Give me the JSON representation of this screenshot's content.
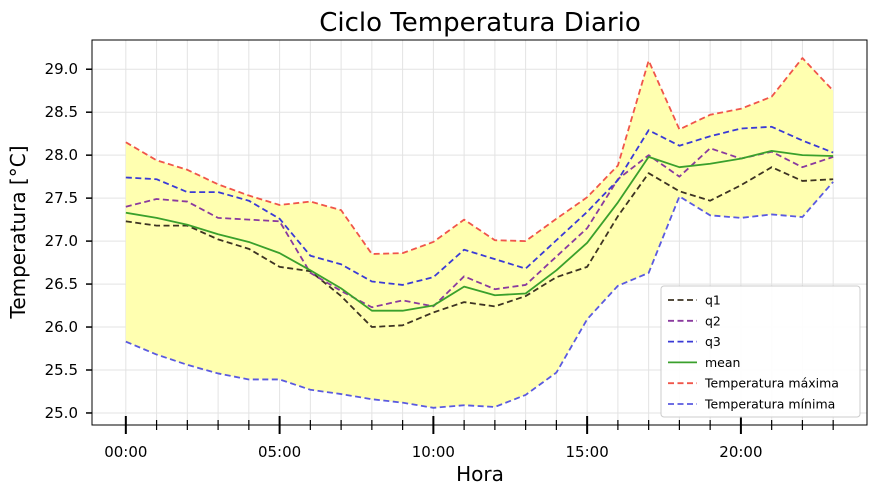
{
  "chart_data": {
    "type": "line",
    "title": "Ciclo Temperatura Diario",
    "xlabel": "Hora",
    "ylabel": "Temperatura [°C]",
    "x": [
      0,
      1,
      2,
      3,
      4,
      5,
      6,
      7,
      8,
      9,
      10,
      11,
      12,
      13,
      14,
      15,
      16,
      17,
      18,
      19,
      20,
      21,
      22,
      23
    ],
    "xlim": [
      -1.1,
      24.1
    ],
    "ylim": [
      24.86,
      29.34
    ],
    "x_ticks": [
      0,
      5,
      10,
      15,
      20
    ],
    "x_tick_labels": [
      "00:00",
      "05:00",
      "10:00",
      "15:00",
      "20:00"
    ],
    "y_ticks": [
      25.0,
      25.5,
      26.0,
      26.5,
      27.0,
      27.5,
      28.0,
      28.5,
      29.0
    ],
    "y_tick_labels": [
      "25.0",
      "25.5",
      "26.0",
      "26.5",
      "27.0",
      "27.5",
      "28.0",
      "28.5",
      "29.0"
    ],
    "grid": true,
    "legend_position": "lower-right",
    "fill_between": {
      "lower": "Temperatura mínima",
      "upper": "Temperatura máxima",
      "color": "#ffffb0"
    },
    "series": [
      {
        "name": "q1",
        "color": "#3d3322",
        "dash": true,
        "values": [
          27.23,
          27.18,
          27.18,
          27.02,
          26.91,
          26.7,
          26.65,
          26.36,
          26.0,
          26.02,
          26.17,
          26.29,
          26.24,
          26.36,
          26.58,
          26.7,
          27.29,
          27.79,
          27.58,
          27.47,
          27.65,
          27.86,
          27.7,
          27.72
        ]
      },
      {
        "name": "q2",
        "color": "#8a3a9e",
        "dash": true,
        "values": [
          27.4,
          27.49,
          27.46,
          27.27,
          27.25,
          27.23,
          26.63,
          26.42,
          26.23,
          26.31,
          26.24,
          26.59,
          26.44,
          26.49,
          26.82,
          27.15,
          27.72,
          28.0,
          27.75,
          28.08,
          27.96,
          28.04,
          27.86,
          27.98
        ]
      },
      {
        "name": "q3",
        "color": "#3a3ad6",
        "dash": true,
        "values": [
          27.74,
          27.72,
          27.57,
          27.57,
          27.47,
          27.26,
          26.83,
          26.73,
          26.53,
          26.49,
          26.58,
          26.9,
          26.79,
          26.68,
          27.01,
          27.34,
          27.71,
          28.29,
          28.11,
          28.22,
          28.31,
          28.33,
          28.17,
          28.03
        ]
      },
      {
        "name": "mean",
        "color": "#3aa02c",
        "dash": false,
        "values": [
          27.33,
          27.27,
          27.19,
          27.08,
          26.99,
          26.86,
          26.66,
          26.45,
          26.19,
          26.19,
          26.25,
          26.47,
          26.37,
          26.39,
          26.66,
          26.98,
          27.45,
          27.98,
          27.86,
          27.9,
          27.96,
          28.05,
          28.0,
          27.99
        ]
      },
      {
        "name": "Temperatura máxima",
        "color": "#f0554a",
        "dash": true,
        "values": [
          28.15,
          27.94,
          27.83,
          27.66,
          27.53,
          27.42,
          27.46,
          27.36,
          26.85,
          26.86,
          26.99,
          27.25,
          27.01,
          27.0,
          27.26,
          27.51,
          27.88,
          29.1,
          28.3,
          28.47,
          28.54,
          28.68,
          29.13,
          28.75
        ]
      },
      {
        "name": "Temperatura mínima",
        "color": "#5a5ae0",
        "dash": true,
        "values": [
          25.83,
          25.68,
          25.56,
          25.46,
          25.39,
          25.39,
          25.27,
          25.22,
          25.16,
          25.12,
          25.06,
          25.09,
          25.07,
          25.21,
          25.47,
          26.09,
          26.48,
          26.63,
          27.52,
          27.3,
          27.27,
          27.31,
          27.28,
          27.69
        ]
      }
    ]
  }
}
